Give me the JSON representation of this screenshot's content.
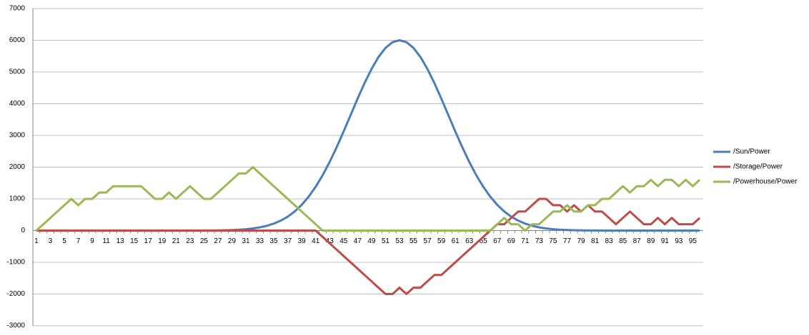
{
  "chart_data": {
    "type": "line",
    "categories": [
      "1",
      null,
      "3",
      null,
      "5",
      null,
      "7",
      null,
      "9",
      null,
      "11",
      null,
      "13",
      null,
      "15",
      null,
      "17",
      null,
      "19",
      null,
      "21",
      null,
      "23",
      null,
      "25",
      null,
      "27",
      null,
      "29",
      null,
      "31",
      null,
      "33",
      null,
      "35",
      null,
      "37",
      null,
      "39",
      null,
      "41",
      null,
      "43",
      null,
      "45",
      null,
      "47",
      null,
      "49",
      null,
      "51",
      null,
      "53",
      null,
      "55",
      null,
      "57",
      null,
      "59",
      null,
      "61",
      null,
      "63",
      null,
      "65",
      null,
      "67",
      null,
      "69",
      null,
      "71",
      null,
      "73",
      null,
      "75",
      null,
      "77",
      null,
      "79",
      null,
      "81",
      null,
      "83",
      null,
      "85",
      null,
      "87",
      null,
      "89",
      null,
      "91",
      null,
      "93",
      null,
      "95",
      null
    ],
    "series": [
      {
        "name": "/Sun/Power",
        "color": "#4a7ebb",
        "values": [
          0,
          0,
          0,
          0,
          0,
          0,
          0,
          0,
          0,
          0,
          0,
          0,
          0,
          0,
          0,
          0,
          0,
          0,
          0,
          0,
          0,
          0,
          0,
          1,
          2,
          4,
          6,
          10,
          17,
          27,
          43,
          67,
          101,
          151,
          220,
          314,
          440,
          604,
          812,
          1070,
          1381,
          1745,
          2163,
          2627,
          3123,
          3639,
          4157,
          4650,
          5096,
          5474,
          5760,
          5939,
          6000,
          5939,
          5760,
          5474,
          5096,
          4650,
          4157,
          3639,
          3123,
          2627,
          2163,
          1745,
          1381,
          1070,
          812,
          604,
          440,
          314,
          220,
          151,
          101,
          67,
          43,
          27,
          17,
          10,
          6,
          4,
          2,
          1,
          0,
          0,
          0,
          0,
          0,
          0,
          0,
          0,
          0,
          0,
          0,
          0,
          0,
          0
        ]
      },
      {
        "name": "/Storage/Power",
        "color": "#be4b48",
        "values": [
          0,
          0,
          0,
          0,
          0,
          0,
          0,
          0,
          0,
          0,
          0,
          0,
          0,
          0,
          0,
          0,
          0,
          0,
          0,
          0,
          0,
          0,
          0,
          0,
          0,
          0,
          0,
          0,
          0,
          0,
          0,
          0,
          0,
          0,
          0,
          0,
          0,
          0,
          0,
          0,
          0,
          -200,
          -400,
          -600,
          -800,
          -1000,
          -1200,
          -1400,
          -1600,
          -1800,
          -2000,
          -2000,
          -1800,
          -2000,
          -1800,
          -1800,
          -1600,
          -1400,
          -1400,
          -1200,
          -1000,
          -800,
          -600,
          -400,
          -200,
          0,
          200,
          200,
          400,
          600,
          600,
          800,
          1000,
          1000,
          800,
          800,
          600,
          800,
          600,
          800,
          600,
          600,
          400,
          200,
          400,
          600,
          400,
          200,
          200,
          400,
          200,
          400,
          200,
          200,
          200,
          400
        ]
      },
      {
        "name": "/Powerhouse/Power",
        "color": "#98b954",
        "values": [
          0,
          200,
          400,
          600,
          800,
          1000,
          800,
          1000,
          1000,
          1200,
          1200,
          1400,
          1400,
          1400,
          1400,
          1400,
          1200,
          1000,
          1000,
          1200,
          1000,
          1200,
          1400,
          1200,
          1000,
          1000,
          1200,
          1400,
          1600,
          1800,
          1800,
          2000,
          1800,
          1600,
          1400,
          1200,
          1000,
          800,
          600,
          400,
          200,
          0,
          0,
          0,
          0,
          0,
          0,
          0,
          0,
          0,
          0,
          0,
          0,
          0,
          0,
          0,
          0,
          0,
          0,
          0,
          0,
          0,
          0,
          0,
          0,
          0,
          200,
          400,
          200,
          200,
          0,
          200,
          200,
          400,
          600,
          600,
          800,
          600,
          600,
          800,
          800,
          1000,
          1000,
          1200,
          1400,
          1200,
          1400,
          1400,
          1600,
          1400,
          1600,
          1600,
          1400,
          1600,
          1400,
          1600
        ]
      }
    ],
    "ylim": [
      -3000,
      7000
    ],
    "yticks": [
      -3000,
      -2000,
      -1000,
      0,
      1000,
      2000,
      3000,
      4000,
      5000,
      6000,
      7000
    ],
    "grid": true,
    "legend": "right"
  }
}
